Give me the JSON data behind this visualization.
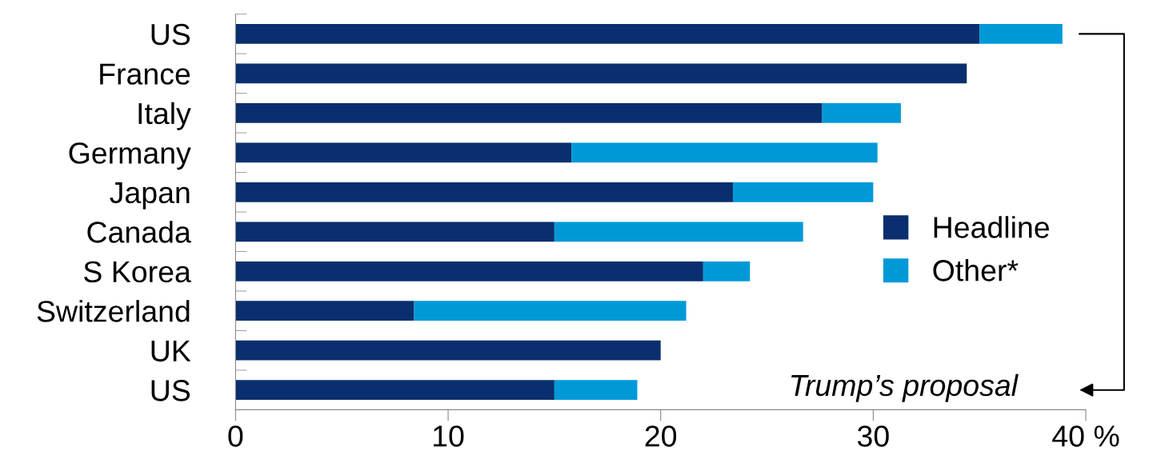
{
  "chart_data": {
    "type": "bar",
    "orientation": "horizontal",
    "stacked": true,
    "categories": [
      "US",
      "France",
      "Italy",
      "Germany",
      "Japan",
      "Canada",
      "S Korea",
      "Switzerland",
      "UK",
      "US"
    ],
    "series": [
      {
        "name": "Headline",
        "color": "#0a2f6e",
        "values": [
          35.0,
          34.4,
          27.6,
          15.8,
          23.4,
          15.0,
          22.0,
          8.4,
          20.0,
          15.0
        ]
      },
      {
        "name": "Other*",
        "color": "#0099d8",
        "values": [
          3.9,
          null,
          3.7,
          14.4,
          6.6,
          11.7,
          2.2,
          12.8,
          null,
          3.9
        ]
      }
    ],
    "xlim": [
      0,
      40
    ],
    "xticks": [
      0,
      10,
      20,
      30,
      {
        "value": 40,
        "label": "40 %"
      }
    ],
    "grid": false,
    "legend": "right",
    "annotations": [
      "Trump’s proposal"
    ]
  }
}
